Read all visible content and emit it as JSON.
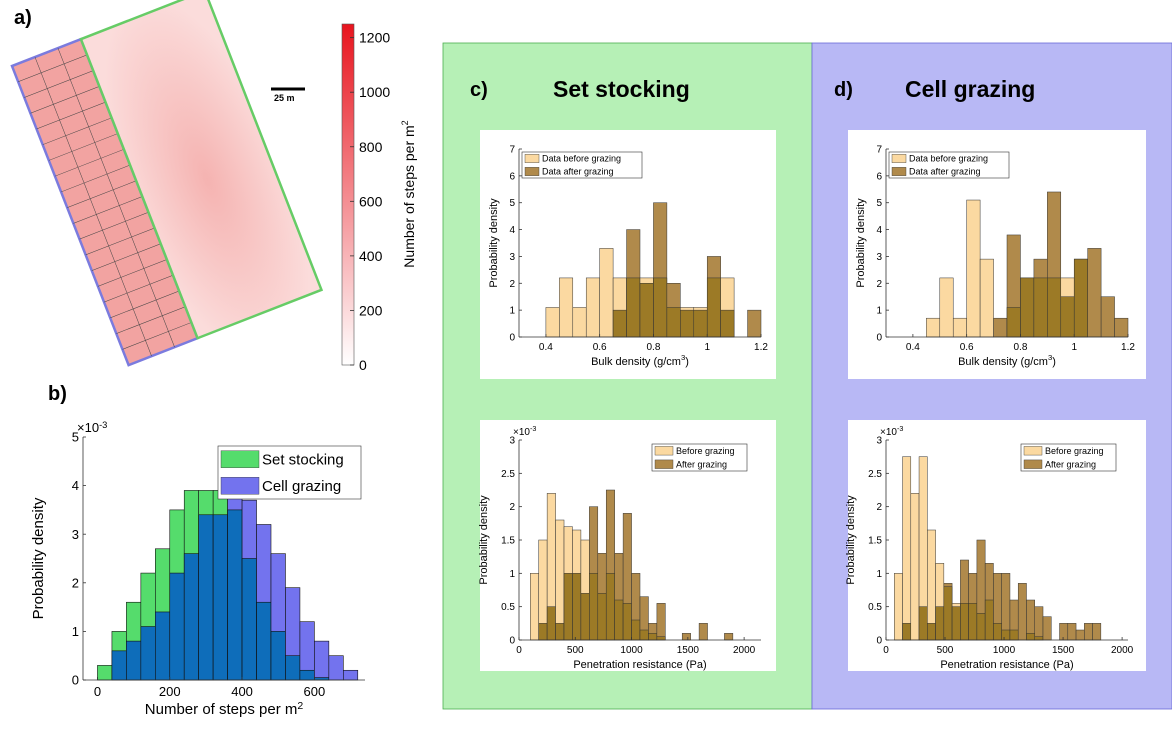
{
  "panel_labels": {
    "a": "a)",
    "b": "b)",
    "c": "c)",
    "d": "d)"
  },
  "map": {
    "scale_bar_label": "25 m",
    "colorbar_label": "Number of steps per m",
    "colorbar_label_sup": "2",
    "colorbar_ticks": [
      "0",
      "200",
      "400",
      "600",
      "800",
      "1000",
      "1200"
    ],
    "colorbar_range": [
      0,
      1250
    ],
    "colors": {
      "low": "#ffffff",
      "high": "#e8141e",
      "cell_border": "#7b7bde",
      "set_border": "#66cc66",
      "field_fill": "#f7c9c7",
      "cell_fill": "#f2a4a2"
    }
  },
  "titles": {
    "c": "Set stocking",
    "d": "Cell grazing"
  },
  "colors": {
    "set_bg": "#b6f0b6",
    "cell_bg": "#b8b8f5",
    "hist_set": "#55dc6c",
    "hist_cell": "#7373ee",
    "hist_overlap": "#0e6dba",
    "before": "#fbd9a1",
    "after": "#b08a4b",
    "overlap": "#9c7a26"
  },
  "chart_data": [
    {
      "id": "b",
      "type": "bar",
      "ylabel": "Probability density",
      "xlabel": "Number of steps per m",
      "xlabel_sup": "2",
      "y_exponent": "-3",
      "xlim": [
        -40,
        740
      ],
      "ylim": [
        0,
        5
      ],
      "xticks": [
        0,
        200,
        400,
        600
      ],
      "yticks": [
        0,
        1,
        2,
        3,
        4,
        5
      ],
      "bin_width": 40,
      "bin_edges_start": 0,
      "series": [
        {
          "name": "Set stocking",
          "values": [
            0.3,
            1.0,
            1.6,
            2.2,
            2.7,
            3.5,
            3.9,
            3.9,
            3.9,
            3.5,
            2.5,
            1.6,
            1.0,
            0.5,
            0.2,
            0.05,
            0.0,
            0.0
          ]
        },
        {
          "name": "Cell grazing",
          "values": [
            0.0,
            0.6,
            0.8,
            1.1,
            1.4,
            2.2,
            2.6,
            3.4,
            3.4,
            4.0,
            3.7,
            3.2,
            2.6,
            1.9,
            1.2,
            0.8,
            0.5,
            0.2
          ]
        }
      ],
      "legend_position": "top-right"
    },
    {
      "id": "c_top",
      "type": "bar",
      "ylabel": "Probability density",
      "xlabel": "Bulk density (g/cm",
      "xlabel_sup": "3",
      "xlabel_end": ")",
      "xlim": [
        0.3,
        1.2
      ],
      "ylim": [
        0,
        7
      ],
      "xticks": [
        0.4,
        0.6,
        0.8,
        1,
        1.2
      ],
      "yticks": [
        0,
        1,
        2,
        3,
        4,
        5,
        6,
        7
      ],
      "bin_width": 0.05,
      "bin_edges_start": 0.4,
      "series": [
        {
          "name": "Data before grazing",
          "values": [
            1.1,
            2.2,
            1.1,
            2.2,
            3.3,
            2.2,
            2.2,
            2.2,
            2.2,
            1.1,
            1.1,
            1.1,
            2.2,
            2.2,
            0,
            0
          ]
        },
        {
          "name": "Data after grazing",
          "values": [
            0,
            0,
            0,
            0,
            0,
            1.0,
            4.0,
            2.0,
            5.0,
            2.0,
            1.0,
            1.0,
            3.0,
            1.0,
            0,
            1.0
          ]
        }
      ],
      "legend_position": "top-left"
    },
    {
      "id": "c_bottom",
      "type": "bar",
      "ylabel": "Probability density",
      "xlabel": "Penetration resistance (Pa)",
      "y_exponent": "-3",
      "xlim": [
        0,
        2150
      ],
      "ylim": [
        0,
        3
      ],
      "xticks": [
        0,
        500,
        1000,
        1500,
        2000
      ],
      "yticks": [
        0,
        0.5,
        1,
        1.5,
        2,
        2.5,
        3
      ],
      "bin_width": 75,
      "bin_edges_start": 100,
      "series": [
        {
          "name": "Before grazing",
          "values": [
            1.0,
            1.5,
            2.2,
            1.8,
            1.7,
            1.65,
            1.5,
            1.0,
            0.7,
            1.0,
            0.6,
            0.55,
            0.3,
            0.15,
            0.1,
            0.05,
            0,
            0,
            0,
            0,
            0,
            0,
            0,
            0
          ]
        },
        {
          "name": "After grazing",
          "values": [
            0,
            0.25,
            0.5,
            0.25,
            1.0,
            1.0,
            0.7,
            2.0,
            1.3,
            2.25,
            1.3,
            1.9,
            1.0,
            0.65,
            0.25,
            0.55,
            0,
            0,
            0.1,
            0,
            0.25,
            0,
            0,
            0.1
          ]
        }
      ],
      "legend_position": "top-right"
    },
    {
      "id": "d_top",
      "type": "bar",
      "ylabel": "Probability density",
      "xlabel": "Bulk density (g/cm",
      "xlabel_sup": "3",
      "xlabel_end": ")",
      "xlim": [
        0.3,
        1.2
      ],
      "ylim": [
        0,
        7
      ],
      "xticks": [
        0.4,
        0.6,
        0.8,
        1,
        1.2
      ],
      "yticks": [
        0,
        1,
        2,
        3,
        4,
        5,
        6,
        7
      ],
      "bin_width": 0.05,
      "bin_edges_start": 0.45,
      "series": [
        {
          "name": "Data before grazing",
          "values": [
            0.7,
            2.2,
            0.7,
            5.1,
            2.9,
            0,
            1.1,
            2.2,
            2.2,
            2.2,
            2.2,
            2.9,
            0,
            0,
            0
          ]
        },
        {
          "name": "Data after grazing",
          "values": [
            0,
            0,
            0,
            0,
            0,
            0.7,
            3.8,
            2.2,
            2.9,
            5.4,
            1.5,
            2.9,
            3.3,
            1.5,
            0.7
          ]
        }
      ],
      "legend_position": "top-left"
    },
    {
      "id": "d_bottom",
      "type": "bar",
      "ylabel": "Probability density",
      "xlabel": "Penetration resistance (Pa)",
      "y_exponent": "-3",
      "xlim": [
        0,
        2050
      ],
      "ylim": [
        0,
        3
      ],
      "xticks": [
        0,
        500,
        1000,
        1500,
        2000
      ],
      "yticks": [
        0,
        0.5,
        1,
        1.5,
        2,
        2.5,
        3
      ],
      "bin_width": 70,
      "bin_edges_start": 70,
      "series": [
        {
          "name": "Before grazing",
          "values": [
            1.0,
            2.75,
            2.2,
            2.75,
            1.65,
            1.15,
            0.8,
            0.55,
            0.55,
            0.55,
            0.4,
            0.6,
            0.25,
            0.15,
            0.15,
            0,
            0.1,
            0.05,
            0,
            0,
            0,
            0,
            0,
            0,
            0
          ]
        },
        {
          "name": "After grazing",
          "values": [
            0,
            0.25,
            0,
            0.5,
            0.25,
            0.5,
            0.85,
            0.5,
            1.2,
            1.0,
            1.5,
            1.15,
            1.0,
            1.0,
            0.6,
            0.85,
            0.6,
            0.5,
            0.35,
            0,
            0.25,
            0.25,
            0.15,
            0.25,
            0.25
          ]
        }
      ],
      "legend_position": "top-right"
    }
  ]
}
